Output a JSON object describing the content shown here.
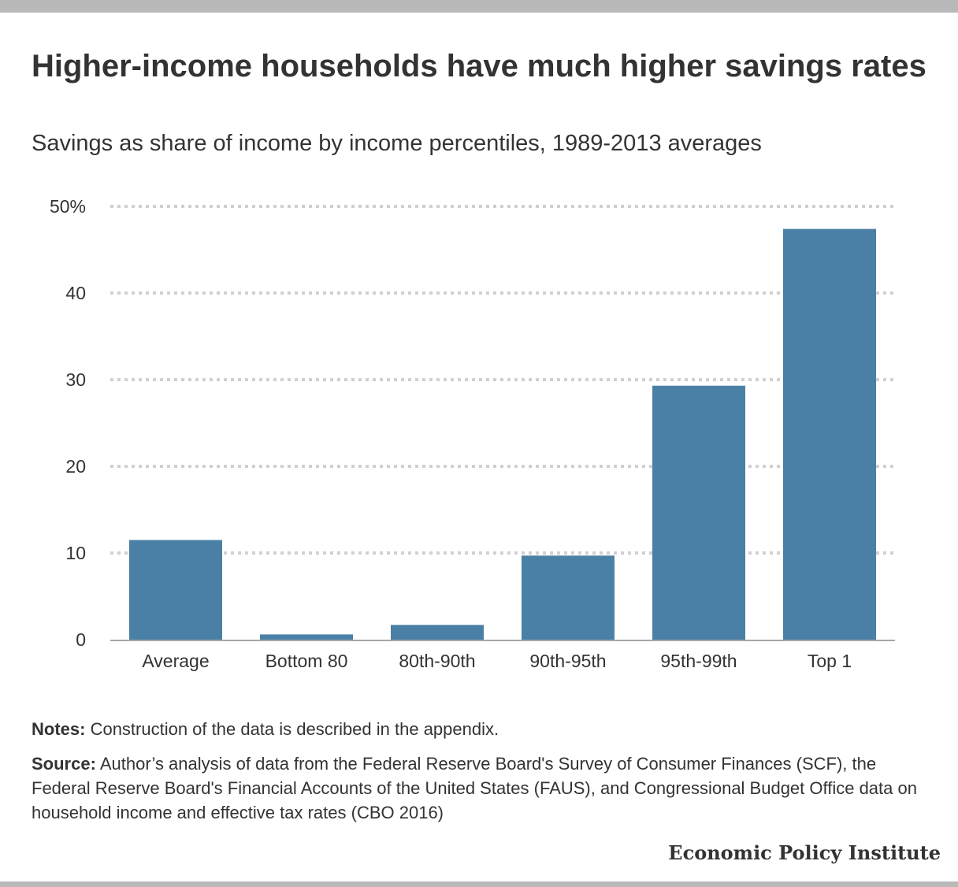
{
  "title": "Higher-income households have much higher savings rates",
  "subtitle": "Savings as share of income by income percentiles, 1989-2013 averages",
  "chart_data": {
    "type": "bar",
    "categories": [
      "Average",
      "Bottom 80",
      "80th-90th",
      "90th-95th",
      "95th-99th",
      "Top 1"
    ],
    "values": [
      11.5,
      0.6,
      1.7,
      9.7,
      29.3,
      47.4
    ],
    "ylim": [
      0,
      50
    ],
    "yticks": [
      0,
      10,
      20,
      30,
      40,
      50
    ],
    "ytick_labels": [
      "0",
      "10",
      "20",
      "30",
      "40",
      "50%"
    ],
    "grid": true,
    "bar_color": "#4a80a5",
    "grid_color": "#d0d0d0",
    "axis_color": "#a6a6a6"
  },
  "notes": {
    "label": "Notes:",
    "text": " Construction of the data is  described in the appendix."
  },
  "source": {
    "label": "Source:",
    "text": " Author’s analysis of data from the Federal Reserve Board's Survey of Consumer Finances (SCF), the Federal Reserve Board's Financial Accounts of the United States (FAUS), and Congressional Budget Office data on household income and effective tax rates (CBO 2016)"
  },
  "brand": "Economic Policy Institute"
}
